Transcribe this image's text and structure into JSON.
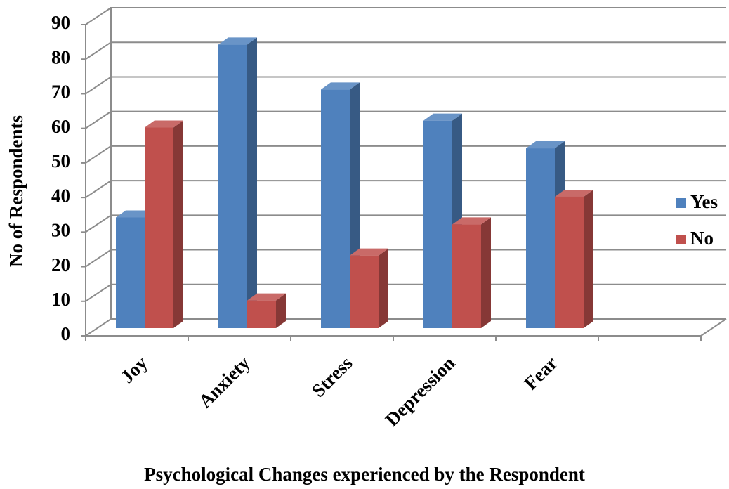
{
  "chart_data": {
    "type": "bar3d",
    "x_label": "Psychological Changes experienced by the Respondent",
    "y_label": "No of Respondents",
    "categories": [
      "Joy",
      "Anxiety",
      "Stress",
      "Depression",
      "Fear",
      null
    ],
    "series": [
      {
        "name": "Yes",
        "color": "#4f81bd",
        "values": [
          32,
          82,
          69,
          60,
          52,
          null
        ]
      },
      {
        "name": "No",
        "color": "#c0504d",
        "values": [
          58,
          8,
          21,
          30,
          38,
          null
        ]
      }
    ],
    "ylim": [
      0,
      90
    ],
    "yticks": [
      0,
      10,
      20,
      30,
      40,
      50,
      60,
      70,
      80,
      90
    ],
    "grid": true,
    "legend": "right"
  }
}
